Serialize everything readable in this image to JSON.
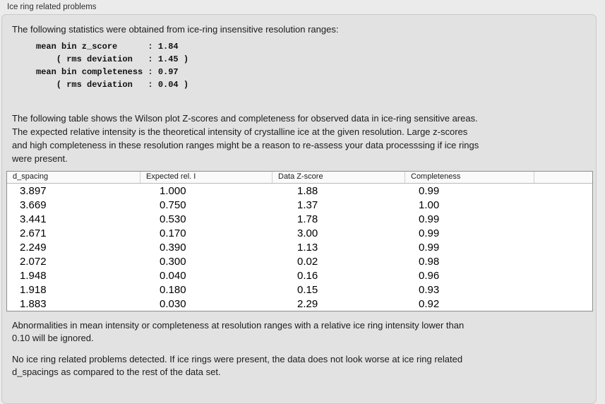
{
  "colors": {
    "page_bg": "#ebebeb",
    "panel_bg": "#e2e2e2",
    "panel_border": "#c9c9c9",
    "table_bg": "#ffffff",
    "table_border": "#8f8f8f",
    "text": "#1b1b1b"
  },
  "panel": {
    "title": "Ice ring related problems"
  },
  "intro": "The following statistics were obtained from ice-ring insensitive resolution ranges:",
  "stats_block": "mean bin z_score      : 1.84\n    ( rms deviation   : 1.45 )\nmean bin completeness : 0.97\n    ( rms deviation   : 0.04 )",
  "table_description": "The following table shows the Wilson plot Z-scores and completeness for observed data in ice-ring sensitive areas.\nThe expected relative intensity is the theoretical intensity of crystalline ice at the given resolution. Large z-scores\nand high completeness in these resolution ranges might be a reason to re-assess your data processsing if ice rings\nwere present.",
  "table": {
    "columns": [
      "d_spacing",
      "Expected rel. I",
      "Data Z-score",
      "Completeness"
    ],
    "rows": [
      [
        "3.897",
        "1.000",
        "1.88",
        "0.99"
      ],
      [
        "3.669",
        "0.750",
        "1.37",
        "1.00"
      ],
      [
        "3.441",
        "0.530",
        "1.78",
        "0.99"
      ],
      [
        "2.671",
        "0.170",
        "3.00",
        "0.99"
      ],
      [
        "2.249",
        "0.390",
        "1.13",
        "0.99"
      ],
      [
        "2.072",
        "0.300",
        "0.02",
        "0.98"
      ],
      [
        "1.948",
        "0.040",
        "0.16",
        "0.96"
      ],
      [
        "1.918",
        "0.180",
        "0.15",
        "0.93"
      ],
      [
        "1.883",
        "0.030",
        "2.29",
        "0.92"
      ]
    ]
  },
  "notes": {
    "ignore_note": "Abnormalities in mean intensity or completeness at resolution ranges with a relative ice ring intensity lower than\n0.10 will be ignored.",
    "conclusion": "No ice ring related problems detected. If ice rings were present, the data does not look worse at ice ring related\nd_spacings as compared to the rest of the data set."
  }
}
